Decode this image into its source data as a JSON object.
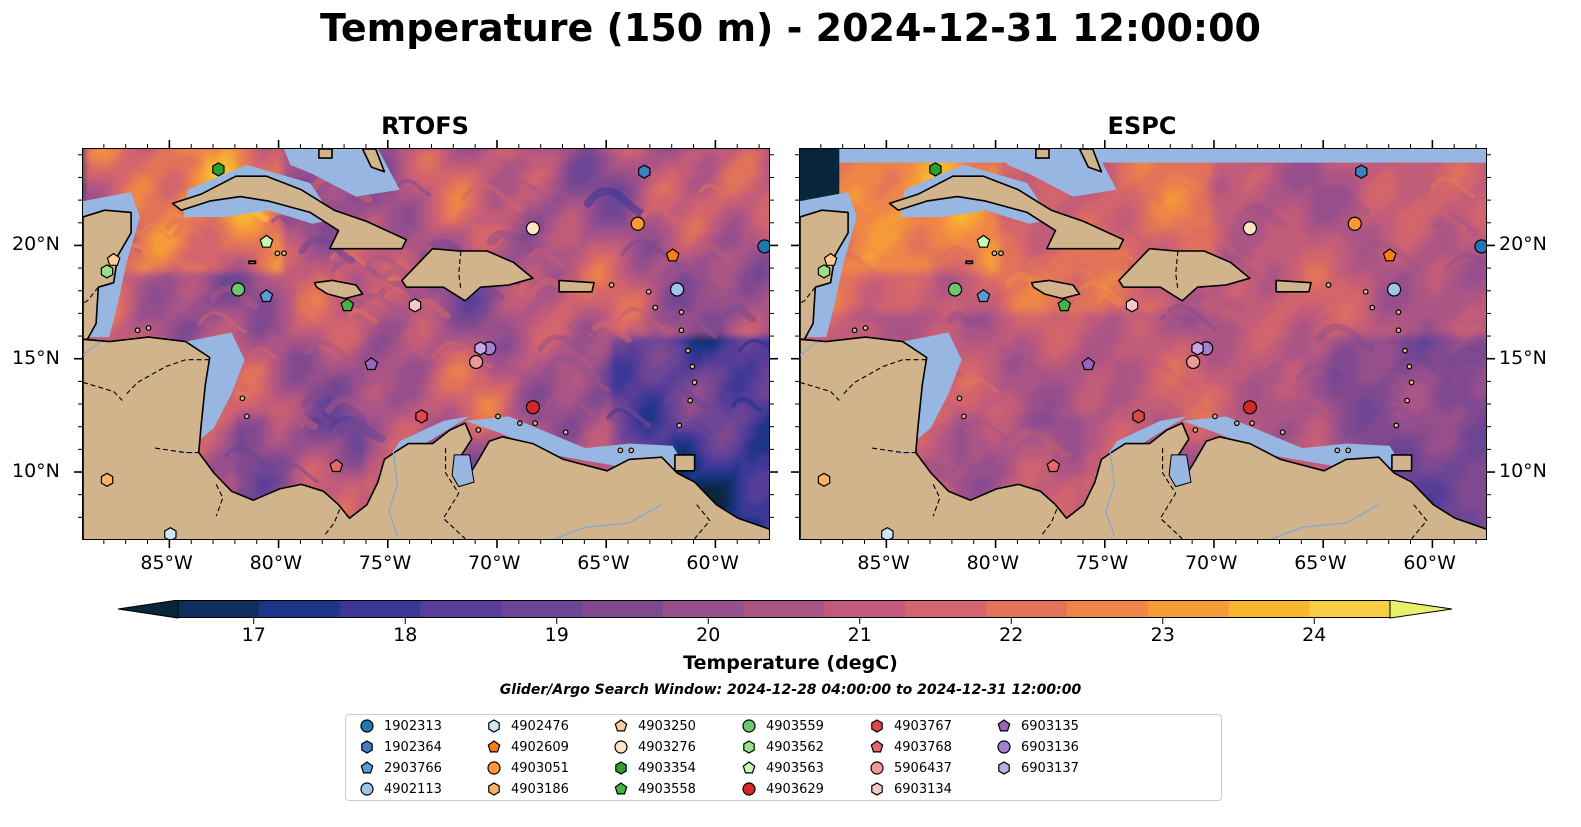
{
  "title": "Temperature (150 m) - 2024-12-31 12:00:00",
  "panels": [
    {
      "name": "RTOFS"
    },
    {
      "name": "ESPC"
    }
  ],
  "map": {
    "lon_range": [
      -89,
      -57.5
    ],
    "lat_range": [
      7,
      24.3
    ],
    "lon_ticks": [
      "85°W",
      "80°W",
      "75°W",
      "70°W",
      "65°W",
      "60°W"
    ],
    "lat_ticks": [
      "20°N",
      "15°N",
      "10°N"
    ],
    "colors": {
      "land": "#d2b48c",
      "shallow": "#97b6e1",
      "deep_water_low": "#0b2437"
    }
  },
  "colorbar": {
    "title": "Temperature (degC)",
    "ticks": [
      "17",
      "18",
      "19",
      "20",
      "21",
      "22",
      "23",
      "24"
    ],
    "min": 16.5,
    "max": 24.5,
    "colors": [
      "#08263b",
      "#0e2e5e",
      "#1f3487",
      "#3c3797",
      "#583e98",
      "#6c4594",
      "#80498f",
      "#96508c",
      "#ab5585",
      "#c15b79",
      "#d3656c",
      "#e27359",
      "#ef8647",
      "#f59c38",
      "#f7b532",
      "#f5ce45",
      "#e8f06c"
    ]
  },
  "search_window": "Glider/Argo Search Window: 2024-12-28 04:00:00 to 2024-12-31 12:00:00",
  "legend": [
    {
      "id": "1902313",
      "color": "#1f77b4",
      "marker": "circle"
    },
    {
      "id": "1902364",
      "color": "#3f7fbf",
      "marker": "hexagon"
    },
    {
      "id": "2903766",
      "color": "#5b9bd5",
      "marker": "pentagon"
    },
    {
      "id": "4902113",
      "color": "#9ec5ea",
      "marker": "circle"
    },
    {
      "id": "4902476",
      "color": "#cfe6f7",
      "marker": "hexagon"
    },
    {
      "id": "4902609",
      "color": "#ff7f0e",
      "marker": "pentagon"
    },
    {
      "id": "4903051",
      "color": "#ff9933",
      "marker": "circle"
    },
    {
      "id": "4903186",
      "color": "#ffb067",
      "marker": "hexagon"
    },
    {
      "id": "4903250",
      "color": "#ffcc99",
      "marker": "pentagon"
    },
    {
      "id": "4903276",
      "color": "#ffe3c6",
      "marker": "circle"
    },
    {
      "id": "4903354",
      "color": "#2ca02c",
      "marker": "hexagon"
    },
    {
      "id": "4903558",
      "color": "#44b244",
      "marker": "pentagon"
    },
    {
      "id": "4903559",
      "color": "#6cc86c",
      "marker": "circle"
    },
    {
      "id": "4903562",
      "color": "#98df8a",
      "marker": "hexagon"
    },
    {
      "id": "4903563",
      "color": "#c9f7b8",
      "marker": "pentagon"
    },
    {
      "id": "4903629",
      "color": "#d62728",
      "marker": "circle"
    },
    {
      "id": "4903767",
      "color": "#e0474b",
      "marker": "hexagon"
    },
    {
      "id": "4903768",
      "color": "#e8676a",
      "marker": "pentagon"
    },
    {
      "id": "5906437",
      "color": "#f0999a",
      "marker": "circle"
    },
    {
      "id": "6903134",
      "color": "#f8c8c8",
      "marker": "hexagon"
    },
    {
      "id": "6903135",
      "color": "#9467bd",
      "marker": "pentagon"
    },
    {
      "id": "6903136",
      "color": "#a57fd0",
      "marker": "circle"
    },
    {
      "id": "6903137",
      "color": "#c5a8e8",
      "marker": "hexagon"
    }
  ],
  "floats": [
    {
      "id": "1902313",
      "lon": -57.8,
      "lat": 20.0
    },
    {
      "id": "1902364",
      "lon": -63.3,
      "lat": 23.3
    },
    {
      "id": "2903766",
      "lon": -80.6,
      "lat": 17.8
    },
    {
      "id": "4902113",
      "lon": -61.8,
      "lat": 18.1
    },
    {
      "id": "4902476",
      "lon": -85.0,
      "lat": 7.3
    },
    {
      "id": "4902609",
      "lon": -62.0,
      "lat": 19.6
    },
    {
      "id": "4903051",
      "lon": -63.6,
      "lat": 21.0
    },
    {
      "id": "4903186",
      "lon": -87.9,
      "lat": 9.7
    },
    {
      "id": "4903250",
      "lon": -87.6,
      "lat": 19.4
    },
    {
      "id": "4903276",
      "lon": -68.4,
      "lat": 20.8
    },
    {
      "id": "4903354",
      "lon": -82.8,
      "lat": 23.4
    },
    {
      "id": "4903558",
      "lon": -76.9,
      "lat": 17.4
    },
    {
      "id": "4903559",
      "lon": -81.9,
      "lat": 18.1
    },
    {
      "id": "4903562",
      "lon": -87.9,
      "lat": 18.9
    },
    {
      "id": "4903563",
      "lon": -80.6,
      "lat": 20.2
    },
    {
      "id": "4903629",
      "lon": -68.4,
      "lat": 12.9
    },
    {
      "id": "4903767",
      "lon": -73.5,
      "lat": 12.5
    },
    {
      "id": "4903768",
      "lon": -77.4,
      "lat": 10.3
    },
    {
      "id": "5906437",
      "lon": -71.0,
      "lat": 14.9
    },
    {
      "id": "6903134",
      "lon": -73.8,
      "lat": 17.4
    },
    {
      "id": "6903135",
      "lon": -75.8,
      "lat": 14.8
    },
    {
      "id": "6903136",
      "lon": -70.4,
      "lat": 15.5
    },
    {
      "id": "6903137",
      "lon": -70.8,
      "lat": 15.5
    }
  ]
}
